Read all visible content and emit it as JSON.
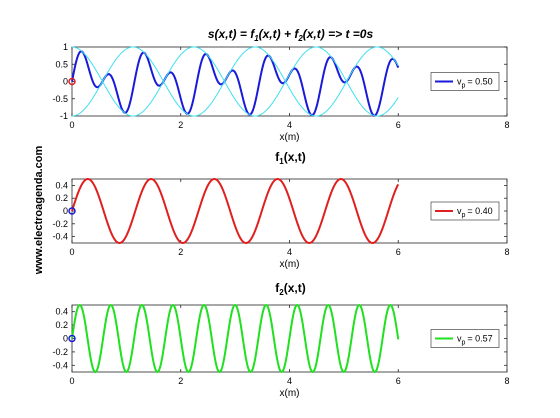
{
  "watermark": "www.electroagenda.com",
  "chart_data": [
    {
      "type": "line",
      "title": {
        "base": "s(x,t) = f",
        "sub1": "1",
        "mid": "(x,t) + f",
        "sub2": "2",
        "tail": "(x,t) => t =0s"
      },
      "xlabel": "x(m)",
      "xlim": [
        0,
        8
      ],
      "ylim": [
        -1,
        1
      ],
      "xticks": [
        "0",
        "2",
        "4",
        "6",
        "8"
      ],
      "yticks": [
        "1",
        "0.5",
        "0",
        "-0.5",
        "-1"
      ],
      "legend": {
        "label": "v",
        "sub": "p",
        "value": "= 0.50",
        "color": "#1a1adb",
        "position": "right"
      },
      "series": [
        {
          "kind": "sum",
          "x_range": [
            0,
            6
          ],
          "k1": 5.4,
          "k2": 11.0,
          "amplitude": 0.5,
          "color": "#1a1adb",
          "stroke": 2
        },
        {
          "kind": "envelope",
          "x_range": [
            0,
            6
          ],
          "dk": 5.6,
          "amplitude": 1,
          "color": "#40e0f0",
          "stroke": 1
        }
      ],
      "marker": {
        "x": 0,
        "y": 0,
        "color": "#e02020"
      }
    },
    {
      "type": "line",
      "title": {
        "base": "f",
        "sub1": "1",
        "tail": "(x,t)"
      },
      "xlabel": "x(m)",
      "xlim": [
        0,
        8
      ],
      "ylim": [
        -0.5,
        0.5
      ],
      "xticks": [
        "0",
        "2",
        "4",
        "6",
        "8"
      ],
      "yticks": [
        "0.4",
        "0.2",
        "0",
        "-0.2",
        "-0.4"
      ],
      "legend": {
        "label": "v",
        "sub": "p",
        "value": "= 0.40",
        "color": "#e02020",
        "position": "right"
      },
      "series": [
        {
          "kind": "sine",
          "x_range": [
            0,
            6
          ],
          "k": 5.4,
          "amplitude": 0.5,
          "color": "#e02020",
          "stroke": 2
        }
      ],
      "marker": {
        "x": 0,
        "y": 0,
        "color": "#1a1adb"
      }
    },
    {
      "type": "line",
      "title": {
        "base": "f",
        "sub1": "2",
        "tail": "(x,t)"
      },
      "xlabel": "x(m)",
      "xlim": [
        0,
        8
      ],
      "ylim": [
        -0.5,
        0.5
      ],
      "xticks": [
        "0",
        "2",
        "4",
        "6",
        "8"
      ],
      "yticks": [
        "0.4",
        "0.2",
        "0",
        "-0.2",
        "-0.4"
      ],
      "legend": {
        "label": "v",
        "sub": "p",
        "value": "= 0.57",
        "color": "#20e020",
        "position": "right"
      },
      "series": [
        {
          "kind": "sine",
          "x_range": [
            0,
            6
          ],
          "k": 11.0,
          "amplitude": 0.5,
          "color": "#20e020",
          "stroke": 2
        }
      ],
      "marker": {
        "x": 0,
        "y": 0,
        "color": "#1a1adb"
      }
    }
  ]
}
